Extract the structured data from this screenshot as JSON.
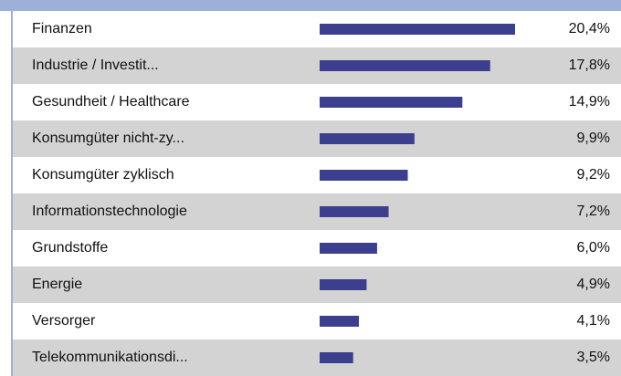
{
  "chart_data": {
    "type": "bar",
    "orientation": "horizontal",
    "color": "#3b3f8e",
    "categories": [
      "Finanzen",
      "Industrie / Investit...",
      "Gesundheit / Healthcare",
      "Konsumgüter nicht-zy...",
      "Konsumgüter zyklisch",
      "Informationstechnologie",
      "Grundstoffe",
      "Energie",
      "Versorger",
      "Telekommunikationsdi..."
    ],
    "values": [
      20.4,
      17.8,
      14.9,
      9.9,
      9.2,
      7.2,
      6.0,
      4.9,
      4.1,
      3.5
    ],
    "value_labels": [
      "20,4%",
      "17,8%",
      "14,9%",
      "9,9%",
      "9,2%",
      "7,2%",
      "6,0%",
      "4,9%",
      "4,1%",
      "3,5%"
    ]
  }
}
